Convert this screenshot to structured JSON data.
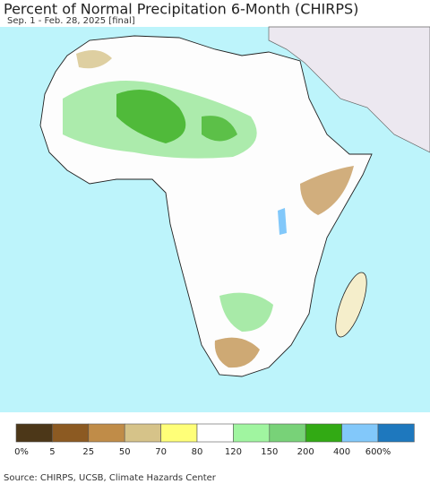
{
  "header": {
    "title": "Percent of Normal Precipitation 6-Month (CHIRPS)",
    "subtitle": "Sep. 1 - Feb. 28, 2025 [final]"
  },
  "legend": {
    "labels": [
      "0%",
      "5",
      "25",
      "50",
      "70",
      "80",
      "120",
      "150",
      "200",
      "400",
      "600%"
    ],
    "colors": [
      "#4c3718",
      "#8c5a22",
      "#c08c48",
      "#d6c389",
      "#ffff78",
      "#ffffff",
      "#a0f5a0",
      "#78d278",
      "#32aa14",
      "#82c8fa",
      "#1e78be"
    ]
  },
  "footer": {
    "source": "Source: CHIRPS, UCSB, Climate Hazards Center"
  }
}
